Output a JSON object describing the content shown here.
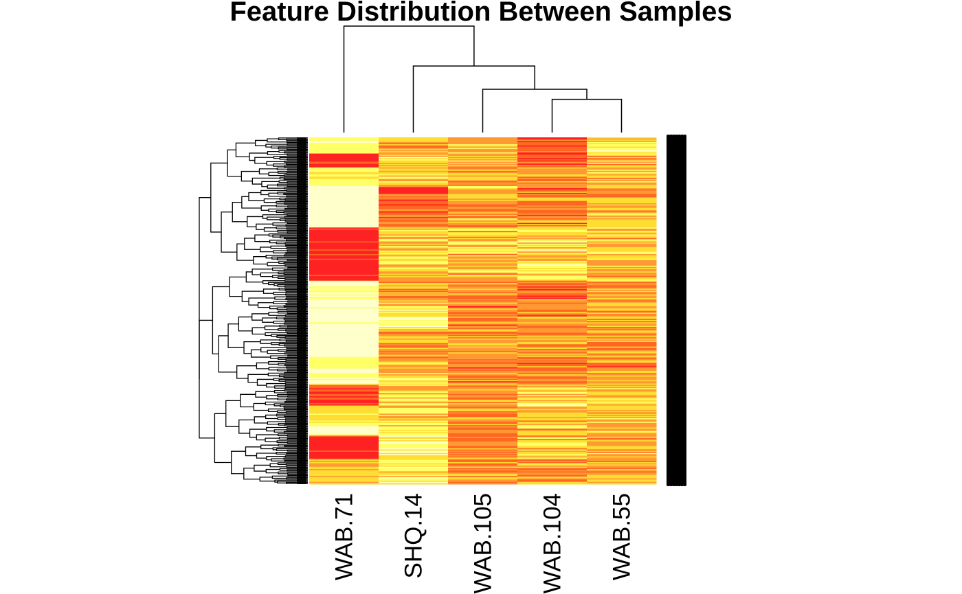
{
  "chart_data": {
    "type": "heatmap",
    "title": "Feature Distribution Between Samples",
    "columns": [
      "WAB.71",
      "SHQ.14",
      "WAB.105",
      "WAB.104",
      "WAB.55"
    ],
    "column_dendrogram": {
      "order": [
        "WAB.71",
        "SHQ.14",
        "WAB.105",
        "WAB.104",
        "WAB.55"
      ],
      "merges": [
        {
          "left": "WAB.104",
          "right": "WAB.55",
          "height": 1.0
        },
        {
          "left": "WAB.105",
          "right": "WAB.104+WAB.55",
          "height": 1.3
        },
        {
          "left": "SHQ.14",
          "right": "WAB.105+WAB.104+WAB.55",
          "height": 2.0
        },
        {
          "left": "WAB.71",
          "right": "SHQ.14+WAB.105+WAB.104+WAB.55",
          "height": 3.2
        }
      ]
    },
    "row_dendrogram": true,
    "row_labels_legible": false,
    "approx_rows": 300,
    "row_groups": [
      {
        "rows": [
          0,
          14
        ],
        "profile": [
          0.15,
          0.55,
          0.45,
          0.85,
          0.35
        ]
      },
      {
        "rows": [
          14,
          26
        ],
        "profile": [
          0.95,
          0.35,
          0.5,
          0.8,
          0.5
        ]
      },
      {
        "rows": [
          26,
          42
        ],
        "profile": [
          0.25,
          0.4,
          0.6,
          0.6,
          0.5
        ]
      },
      {
        "rows": [
          42,
          78
        ],
        "profile": [
          0.0,
          0.75,
          0.55,
          0.7,
          0.55
        ]
      },
      {
        "rows": [
          78,
          124
        ],
        "profile": [
          0.97,
          0.4,
          0.45,
          0.35,
          0.45
        ]
      },
      {
        "rows": [
          124,
          146
        ],
        "profile": [
          0.05,
          0.55,
          0.6,
          0.75,
          0.6
        ]
      },
      {
        "rows": [
          146,
          166
        ],
        "profile": [
          0.02,
          0.25,
          0.7,
          0.72,
          0.6
        ]
      },
      {
        "rows": [
          166,
          190
        ],
        "profile": [
          0.0,
          0.6,
          0.6,
          0.6,
          0.6
        ]
      },
      {
        "rows": [
          190,
          200
        ],
        "profile": [
          0.2,
          0.5,
          0.7,
          0.7,
          0.68
        ]
      },
      {
        "rows": [
          200,
          214
        ],
        "profile": [
          0.05,
          0.35,
          0.65,
          0.7,
          0.65
        ]
      },
      {
        "rows": [
          214,
          232
        ],
        "profile": [
          0.9,
          0.4,
          0.6,
          0.35,
          0.45
        ]
      },
      {
        "rows": [
          232,
          250
        ],
        "profile": [
          0.35,
          0.45,
          0.6,
          0.5,
          0.5
        ]
      },
      {
        "rows": [
          250,
          258
        ],
        "profile": [
          0.02,
          0.4,
          0.55,
          0.55,
          0.5
        ]
      },
      {
        "rows": [
          258,
          278
        ],
        "profile": [
          0.95,
          0.2,
          0.6,
          0.5,
          0.55
        ]
      },
      {
        "rows": [
          278,
          300
        ],
        "profile": [
          0.45,
          0.35,
          0.6,
          0.55,
          0.55
        ]
      }
    ],
    "colormap": [
      "#ffffcc",
      "#ffff66",
      "#ffdd33",
      "#ff9933",
      "#ff6622",
      "#ff2222"
    ],
    "grid": false,
    "legend": "none"
  }
}
